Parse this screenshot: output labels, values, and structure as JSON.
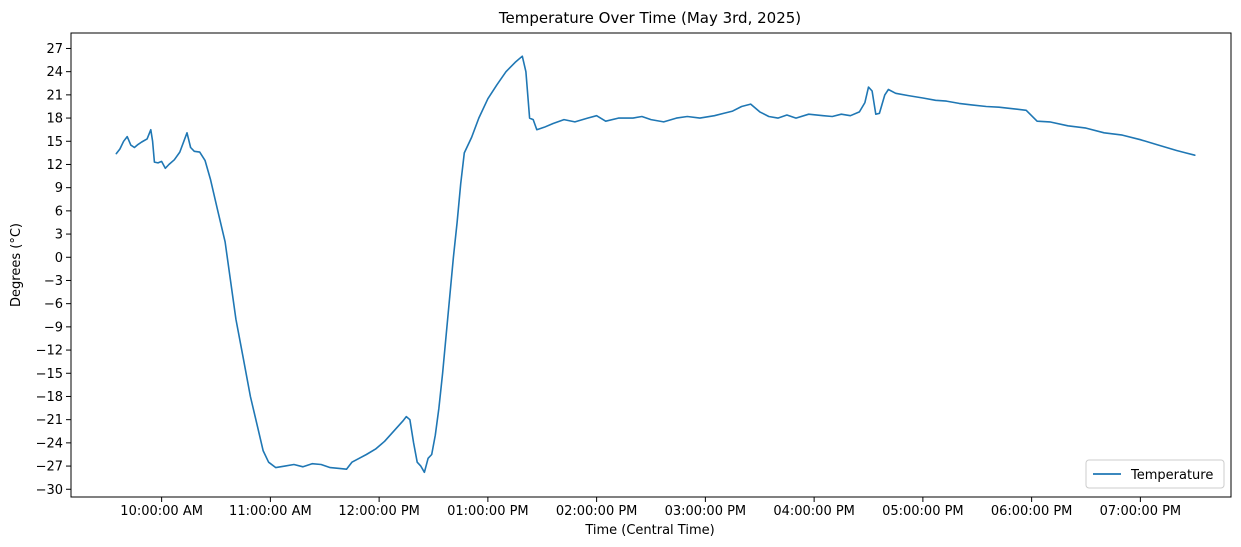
{
  "chart_data": {
    "type": "line",
    "title": "Temperature Over Time (May 3rd, 2025)",
    "xlabel": "Time (Central Time)",
    "ylabel": "Degrees (°C)",
    "ylim": [
      -31,
      29
    ],
    "xlim": [
      "09:10",
      "19:50"
    ],
    "yticks": [
      -30,
      -27,
      -24,
      -21,
      -18,
      -15,
      -12,
      -9,
      -6,
      -3,
      0,
      3,
      6,
      9,
      12,
      15,
      18,
      21,
      24,
      27
    ],
    "xticks": [
      {
        "time": "10:00",
        "label": "10:00:00 AM"
      },
      {
        "time": "11:00",
        "label": "11:00:00 AM"
      },
      {
        "time": "12:00",
        "label": "12:00:00 PM"
      },
      {
        "time": "13:00",
        "label": "01:00:00 PM"
      },
      {
        "time": "14:00",
        "label": "02:00:00 PM"
      },
      {
        "time": "15:00",
        "label": "03:00:00 PM"
      },
      {
        "time": "16:00",
        "label": "04:00:00 PM"
      },
      {
        "time": "17:00",
        "label": "05:00:00 PM"
      },
      {
        "time": "18:00",
        "label": "06:00:00 PM"
      },
      {
        "time": "19:00",
        "label": "07:00:00 PM"
      }
    ],
    "grid": false,
    "legend_position": "bottom-right",
    "series": [
      {
        "name": "Temperature",
        "color": "#1f77b4",
        "points": [
          [
            "09:35",
            13.4
          ],
          [
            "09:37",
            14.0
          ],
          [
            "09:39",
            15.0
          ],
          [
            "09:41",
            15.6
          ],
          [
            "09:43",
            14.5
          ],
          [
            "09:45",
            14.2
          ],
          [
            "09:47",
            14.6
          ],
          [
            "09:49",
            14.9
          ],
          [
            "09:52",
            15.3
          ],
          [
            "09:54",
            16.5
          ],
          [
            "09:55",
            15.0
          ],
          [
            "09:56",
            12.3
          ],
          [
            "09:58",
            12.2
          ],
          [
            "10:00",
            12.4
          ],
          [
            "10:02",
            11.5
          ],
          [
            "10:04",
            12.0
          ],
          [
            "10:07",
            12.6
          ],
          [
            "10:10",
            13.6
          ],
          [
            "10:14",
            16.1
          ],
          [
            "10:16",
            14.2
          ],
          [
            "10:18",
            13.7
          ],
          [
            "10:21",
            13.6
          ],
          [
            "10:24",
            12.5
          ],
          [
            "10:27",
            10.0
          ],
          [
            "10:31",
            6.0
          ],
          [
            "10:35",
            2.0
          ],
          [
            "10:38",
            -3.0
          ],
          [
            "10:41",
            -8.0
          ],
          [
            "10:45",
            -13.0
          ],
          [
            "10:49",
            -18.0
          ],
          [
            "10:53",
            -22.0
          ],
          [
            "10:56",
            -25.0
          ],
          [
            "10:59",
            -26.5
          ],
          [
            "11:03",
            -27.2
          ],
          [
            "11:08",
            -27.0
          ],
          [
            "11:13",
            -26.8
          ],
          [
            "11:18",
            -27.1
          ],
          [
            "11:23",
            -26.7
          ],
          [
            "11:28",
            -26.8
          ],
          [
            "11:33",
            -27.2
          ],
          [
            "11:38",
            -27.3
          ],
          [
            "11:42",
            -27.4
          ],
          [
            "11:45",
            -26.5
          ],
          [
            "11:49",
            -26.0
          ],
          [
            "11:53",
            -25.5
          ],
          [
            "11:58",
            -24.8
          ],
          [
            "12:03",
            -23.8
          ],
          [
            "12:08",
            -22.5
          ],
          [
            "12:13",
            -21.2
          ],
          [
            "12:15",
            -20.6
          ],
          [
            "12:17",
            -21.0
          ],
          [
            "12:19",
            -24.0
          ],
          [
            "12:21",
            -26.5
          ],
          [
            "12:23",
            -27.0
          ],
          [
            "12:25",
            -27.8
          ],
          [
            "12:27",
            -26.0
          ],
          [
            "12:29",
            -25.5
          ],
          [
            "12:31",
            -23.0
          ],
          [
            "12:33",
            -19.5
          ],
          [
            "12:35",
            -15.0
          ],
          [
            "12:37",
            -10.0
          ],
          [
            "12:39",
            -5.0
          ],
          [
            "12:41",
            0.0
          ],
          [
            "12:43",
            4.5
          ],
          [
            "12:45",
            9.5
          ],
          [
            "12:47",
            13.5
          ],
          [
            "12:51",
            15.5
          ],
          [
            "12:55",
            18.0
          ],
          [
            "13:00",
            20.5
          ],
          [
            "13:05",
            22.3
          ],
          [
            "13:10",
            24.0
          ],
          [
            "13:15",
            25.2
          ],
          [
            "13:19",
            26.0
          ],
          [
            "13:21",
            24.0
          ],
          [
            "13:23",
            18.0
          ],
          [
            "13:25",
            17.8
          ],
          [
            "13:27",
            16.5
          ],
          [
            "13:31",
            16.8
          ],
          [
            "13:36",
            17.3
          ],
          [
            "13:42",
            17.8
          ],
          [
            "13:48",
            17.5
          ],
          [
            "13:55",
            18.0
          ],
          [
            "14:00",
            18.3
          ],
          [
            "14:05",
            17.6
          ],
          [
            "14:12",
            18.0
          ],
          [
            "14:20",
            18.0
          ],
          [
            "14:25",
            18.2
          ],
          [
            "14:30",
            17.8
          ],
          [
            "14:37",
            17.5
          ],
          [
            "14:44",
            18.0
          ],
          [
            "14:50",
            18.2
          ],
          [
            "14:57",
            18.0
          ],
          [
            "15:05",
            18.3
          ],
          [
            "15:10",
            18.6
          ],
          [
            "15:15",
            18.9
          ],
          [
            "15:20",
            19.5
          ],
          [
            "15:25",
            19.8
          ],
          [
            "15:30",
            18.8
          ],
          [
            "15:35",
            18.2
          ],
          [
            "15:40",
            18.0
          ],
          [
            "15:45",
            18.4
          ],
          [
            "15:50",
            18.0
          ],
          [
            "15:57",
            18.5
          ],
          [
            "16:05",
            18.3
          ],
          [
            "16:10",
            18.2
          ],
          [
            "16:15",
            18.5
          ],
          [
            "16:20",
            18.3
          ],
          [
            "16:25",
            18.8
          ],
          [
            "16:28",
            20.0
          ],
          [
            "16:30",
            22.0
          ],
          [
            "16:32",
            21.5
          ],
          [
            "16:34",
            18.5
          ],
          [
            "16:36",
            18.6
          ],
          [
            "16:39",
            21.0
          ],
          [
            "16:41",
            21.7
          ],
          [
            "16:45",
            21.2
          ],
          [
            "16:52",
            20.9
          ],
          [
            "17:00",
            20.6
          ],
          [
            "17:07",
            20.3
          ],
          [
            "17:13",
            20.2
          ],
          [
            "17:20",
            19.9
          ],
          [
            "17:27",
            19.7
          ],
          [
            "17:35",
            19.5
          ],
          [
            "17:42",
            19.4
          ],
          [
            "17:50",
            19.2
          ],
          [
            "17:57",
            19.0
          ],
          [
            "18:03",
            17.6
          ],
          [
            "18:10",
            17.5
          ],
          [
            "18:20",
            17.0
          ],
          [
            "18:30",
            16.7
          ],
          [
            "18:40",
            16.1
          ],
          [
            "18:50",
            15.8
          ],
          [
            "19:00",
            15.2
          ],
          [
            "19:10",
            14.5
          ],
          [
            "19:20",
            13.8
          ],
          [
            "19:25",
            13.5
          ],
          [
            "19:30",
            13.2
          ]
        ]
      }
    ]
  }
}
